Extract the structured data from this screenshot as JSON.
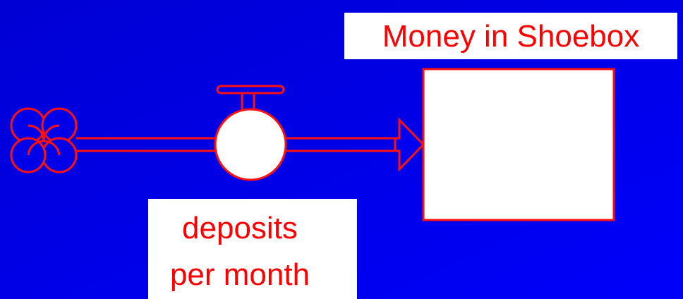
{
  "stock": {
    "label": "Money in Shoebox"
  },
  "flow": {
    "label_lines": [
      "deposits",
      "per month"
    ]
  }
}
